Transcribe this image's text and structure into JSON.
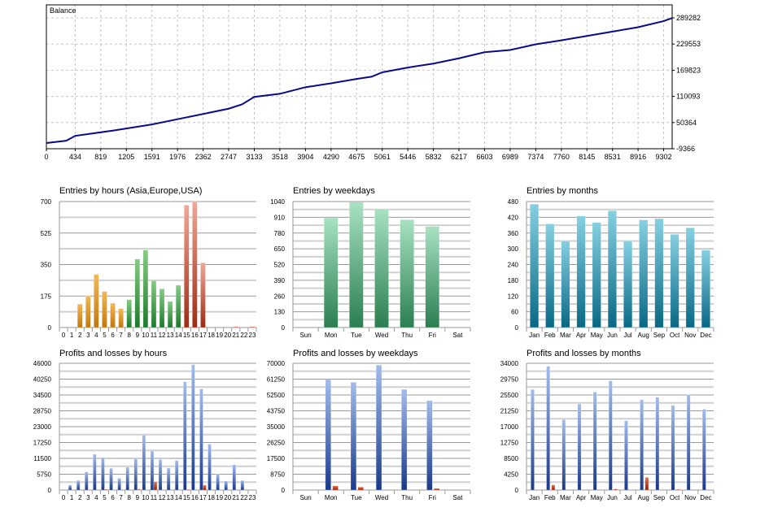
{
  "colors": {
    "balance_line": "#0a0a8a",
    "grid": "#c4c4c4"
  },
  "chart_data": [
    {
      "id": "balance",
      "type": "line",
      "title": "Balance",
      "y_ticks": [
        "289282",
        "229553",
        "169823",
        "110093",
        "50364",
        "-9366"
      ],
      "y_tick_values": [
        289282,
        229553,
        169823,
        110093,
        50364,
        -9366
      ],
      "x_ticks": [
        "0",
        "434",
        "819",
        "1205",
        "1591",
        "1976",
        "2362",
        "2747",
        "3133",
        "3518",
        "3904",
        "4290",
        "4675",
        "5061",
        "5446",
        "5832",
        "6217",
        "6603",
        "6989",
        "7374",
        "7760",
        "8145",
        "8531",
        "8916",
        "9302"
      ],
      "xlim": [
        0,
        9430
      ],
      "ylim": [
        -9366,
        319000
      ],
      "series": [
        {
          "name": "Balance",
          "x": [
            0,
            300,
            434,
            1000,
            1591,
            1976,
            2362,
            2747,
            2950,
            3133,
            3518,
            3904,
            4290,
            4675,
            4900,
            5061,
            5446,
            5832,
            6217,
            6603,
            6989,
            7374,
            7760,
            8145,
            8531,
            8916,
            9302,
            9430
          ],
          "y": [
            3600,
            9000,
            20000,
            32000,
            46000,
            58000,
            70000,
            82000,
            92000,
            109000,
            116000,
            131000,
            140000,
            150000,
            155000,
            165000,
            176000,
            185000,
            197000,
            211000,
            216000,
            229000,
            238000,
            248000,
            258000,
            268000,
            282000,
            289000
          ]
        }
      ]
    },
    {
      "id": "entries-hours",
      "type": "bar",
      "title": "Entries by hours (Asia,Europe,USA)",
      "categories": [
        "0",
        "1",
        "2",
        "3",
        "4",
        "5",
        "6",
        "7",
        "8",
        "9",
        "10",
        "11",
        "12",
        "13",
        "14",
        "15",
        "16",
        "17",
        "18",
        "19",
        "20",
        "21",
        "22",
        "23"
      ],
      "y_ticks": [
        "0",
        "175",
        "350",
        "525",
        "700"
      ],
      "ylim": [
        0,
        700
      ],
      "series": [
        {
          "name": "Entries",
          "values": [
            0,
            0,
            130,
            175,
            295,
            200,
            135,
            105,
            155,
            380,
            430,
            260,
            215,
            145,
            235,
            680,
            700,
            360,
            0,
            0,
            0,
            5,
            0,
            5
          ],
          "groups": [
            "asia",
            "asia",
            "asia",
            "asia",
            "asia",
            "asia",
            "asia",
            "asia",
            "europe",
            "europe",
            "europe",
            "europe",
            "europe",
            "europe",
            "europe",
            "usa",
            "usa",
            "usa",
            "usa",
            "usa",
            "usa",
            "usa",
            "usa",
            "usa"
          ]
        }
      ]
    },
    {
      "id": "entries-weekdays",
      "type": "bar",
      "title": "Entries by weekdays",
      "categories": [
        "Sun",
        "Mon",
        "Tue",
        "Wed",
        "Thu",
        "Fri",
        "Sat"
      ],
      "y_ticks": [
        "0",
        "130",
        "260",
        "390",
        "520",
        "650",
        "780",
        "910",
        "1040"
      ],
      "ylim": [
        0,
        1040
      ],
      "series": [
        {
          "name": "Entries",
          "values": [
            0,
            905,
            1035,
            980,
            890,
            835,
            0
          ]
        }
      ]
    },
    {
      "id": "entries-months",
      "type": "bar",
      "title": "Entries by months",
      "categories": [
        "Jan",
        "Feb",
        "Mar",
        "Apr",
        "May",
        "Jun",
        "Jul",
        "Aug",
        "Sep",
        "Oct",
        "Nov",
        "Dec"
      ],
      "y_ticks": [
        "0",
        "60",
        "120",
        "180",
        "240",
        "300",
        "360",
        "420",
        "480"
      ],
      "ylim": [
        0,
        480
      ],
      "series": [
        {
          "name": "Entries",
          "values": [
            470,
            395,
            330,
            425,
            400,
            445,
            330,
            410,
            415,
            355,
            380,
            295
          ]
        }
      ]
    },
    {
      "id": "pl-hours",
      "type": "bar",
      "title": "Profits and losses by hours",
      "categories": [
        "0",
        "1",
        "2",
        "3",
        "4",
        "5",
        "6",
        "7",
        "8",
        "9",
        "10",
        "11",
        "12",
        "13",
        "14",
        "15",
        "16",
        "17",
        "18",
        "19",
        "20",
        "21",
        "22",
        "23"
      ],
      "y_ticks": [
        "0",
        "5750",
        "11500",
        "17250",
        "23000",
        "28750",
        "34500",
        "40250",
        "46000"
      ],
      "ylim": [
        0,
        46000
      ],
      "series": [
        {
          "name": "Profits",
          "values": [
            0,
            1800,
            3500,
            6600,
            13000,
            11800,
            7900,
            4300,
            8300,
            11500,
            20000,
            14300,
            11100,
            8000,
            10700,
            39300,
            45500,
            36700,
            16700,
            5800,
            3300,
            9200,
            3500,
            0
          ]
        },
        {
          "name": "Losses",
          "values": [
            0,
            0,
            0,
            0,
            0,
            300,
            0,
            0,
            0,
            300,
            0,
            3000,
            0,
            0,
            0,
            200,
            0,
            1800,
            0,
            0,
            0,
            0,
            0,
            0
          ]
        }
      ]
    },
    {
      "id": "pl-weekdays",
      "type": "bar",
      "title": "Profits and losses by weekdays",
      "categories": [
        "Sun",
        "Mon",
        "Tue",
        "Wed",
        "Thu",
        "Fri",
        "Sat"
      ],
      "y_ticks": [
        "0",
        "8750",
        "17500",
        "26250",
        "35000",
        "43750",
        "52500",
        "61250",
        "70000"
      ],
      "ylim": [
        0,
        70000
      ],
      "series": [
        {
          "name": "Profits",
          "values": [
            0,
            61000,
            59500,
            69000,
            55600,
            49400,
            0
          ]
        },
        {
          "name": "Losses",
          "values": [
            0,
            2300,
            1700,
            0,
            0,
            900,
            0
          ]
        }
      ]
    },
    {
      "id": "pl-months",
      "type": "bar",
      "title": "Profits and losses by months",
      "categories": [
        "Jan",
        "Feb",
        "Mar",
        "Apr",
        "May",
        "Jun",
        "Jul",
        "Aug",
        "Sep",
        "Oct",
        "Nov",
        "Dec"
      ],
      "y_ticks": [
        "0",
        "4250",
        "8500",
        "12750",
        "17000",
        "21250",
        "25500",
        "29750",
        "34000"
      ],
      "ylim": [
        0,
        34000
      ],
      "series": [
        {
          "name": "Profits",
          "values": [
            27000,
            33200,
            18900,
            23100,
            26300,
            29300,
            18600,
            24200,
            24900,
            22700,
            25600,
            21700
          ]
        },
        {
          "name": "Losses",
          "values": [
            0,
            1400,
            0,
            0,
            0,
            300,
            0,
            3400,
            0,
            200,
            0,
            0
          ]
        }
      ]
    }
  ]
}
